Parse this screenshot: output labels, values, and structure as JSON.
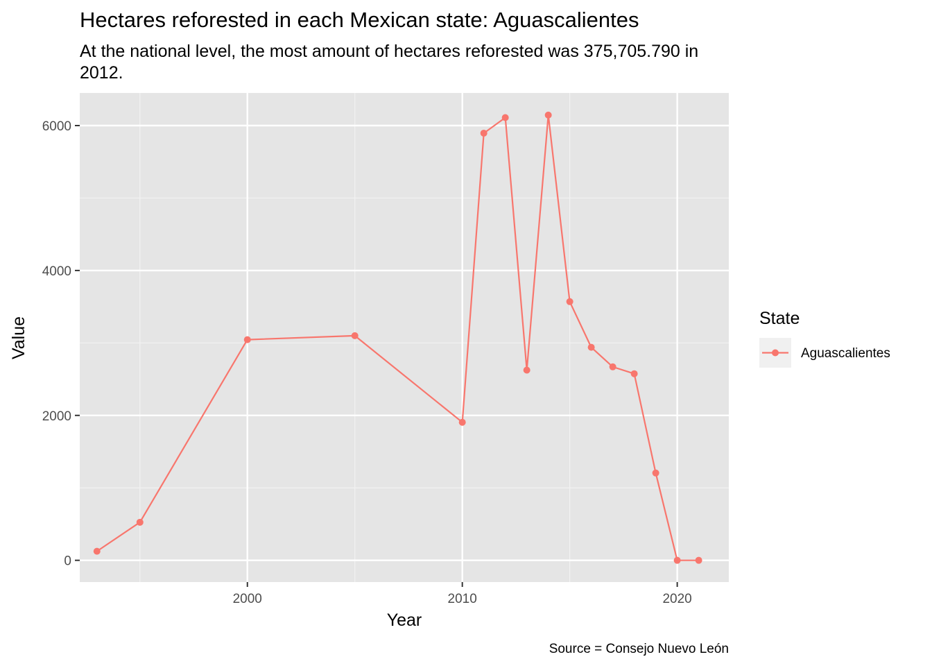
{
  "chart_data": {
    "type": "line",
    "title": "Hectares reforested in each Mexican state: Aguascalientes",
    "subtitle_lines": [
      "At the national level, the most amount of hectares reforested was 375,705.790 in",
      "2012."
    ],
    "xlabel": "Year",
    "ylabel": "Value",
    "caption": "Source = Consejo Nuevo León",
    "legend_title": "State",
    "legend_position": "right",
    "xlim": [
      1992.2,
      2022.4
    ],
    "ylim": [
      -300,
      6450
    ],
    "x_ticks": [
      2000,
      2010,
      2020
    ],
    "y_ticks": [
      0,
      2000,
      4000,
      6000
    ],
    "x_tick_labels": [
      "2000",
      "2010",
      "2020"
    ],
    "y_tick_labels": [
      "0",
      "2000",
      "4000",
      "6000"
    ],
    "grid": true,
    "series": [
      {
        "name": "Aguascalientes",
        "color": "#f8766d",
        "x": [
          1993,
          1995,
          2000,
          2005,
          2010,
          2011,
          2012,
          2013,
          2014,
          2015,
          2016,
          2017,
          2018,
          2019,
          2020,
          2021
        ],
        "y": [
          125,
          525,
          3045,
          3100,
          1905,
          5895,
          6110,
          2625,
          6145,
          3570,
          2940,
          2670,
          2575,
          1205,
          0,
          0
        ]
      }
    ]
  }
}
